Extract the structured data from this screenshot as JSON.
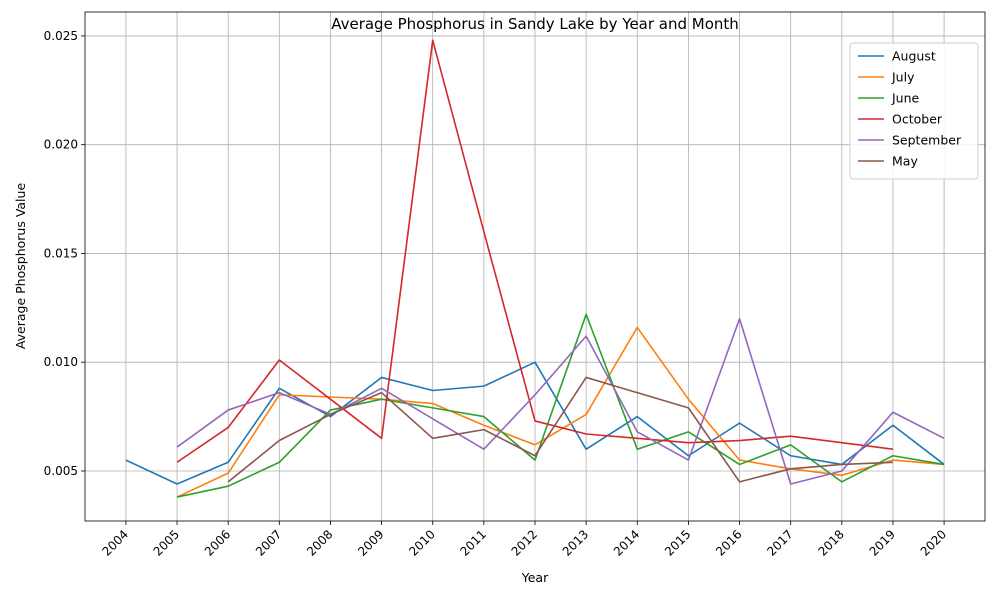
{
  "chart_data": {
    "type": "line",
    "title": "Average Phosphorus in Sandy Lake by Year and Month",
    "xlabel": "Year",
    "ylabel": "Average Phosphorus Value",
    "x": [
      2004,
      2005,
      2006,
      2007,
      2008,
      2009,
      2010,
      2011,
      2012,
      2013,
      2014,
      2015,
      2016,
      2017,
      2018,
      2019,
      2020
    ],
    "x_tick_labels": [
      "2004",
      "2005",
      "2006",
      "2007",
      "2008",
      "2009",
      "2010",
      "2011",
      "2012",
      "2013",
      "2014",
      "2015",
      "2016",
      "2017",
      "2018",
      "2019",
      "2020"
    ],
    "y_ticks": [
      0.005,
      0.01,
      0.015,
      0.02,
      0.025
    ],
    "y_tick_labels": [
      "0.005",
      "0.010",
      "0.015",
      "0.020",
      "0.025"
    ],
    "xlim": [
      2003.2,
      2020.8
    ],
    "ylim": [
      0.0027,
      0.0261
    ],
    "grid": true,
    "legend_position": "top-right",
    "series": [
      {
        "name": "August",
        "color": "#1f77b4",
        "values": [
          0.0055,
          0.0044,
          0.0054,
          0.0088,
          0.0075,
          0.0093,
          0.0087,
          0.0089,
          0.01,
          0.006,
          0.0075,
          0.0057,
          0.0072,
          0.0057,
          0.0053,
          0.0071,
          0.0053
        ]
      },
      {
        "name": "July",
        "color": "#ff7f0e",
        "values": [
          null,
          0.0038,
          0.0049,
          0.0085,
          0.0084,
          0.0083,
          0.0081,
          0.0071,
          0.0062,
          0.0076,
          0.0116,
          0.0083,
          0.0055,
          0.0051,
          0.0048,
          0.0055,
          0.0053
        ]
      },
      {
        "name": "June",
        "color": "#2ca02c",
        "values": [
          null,
          0.0038,
          0.0043,
          0.0054,
          0.0078,
          0.0083,
          0.0079,
          0.0075,
          0.0055,
          0.0122,
          0.006,
          0.0068,
          0.0053,
          0.0062,
          0.0045,
          0.0057,
          0.0053
        ]
      },
      {
        "name": "October",
        "color": "#d62728",
        "values": [
          null,
          0.0054,
          0.007,
          0.0101,
          0.0083,
          0.0065,
          0.0248,
          0.016,
          0.0073,
          0.0067,
          0.0065,
          0.0063,
          0.0064,
          0.0066,
          0.0063,
          0.006,
          null
        ]
      },
      {
        "name": "September",
        "color": "#9467bd",
        "values": [
          null,
          0.0061,
          0.0078,
          0.0086,
          0.0076,
          0.0088,
          0.0074,
          0.006,
          0.0085,
          0.0112,
          0.0068,
          0.0055,
          0.012,
          0.0044,
          0.005,
          0.0077,
          0.0065
        ]
      },
      {
        "name": "May",
        "color": "#8c564b",
        "values": [
          null,
          null,
          0.0045,
          0.0064,
          0.0076,
          0.0086,
          0.0065,
          0.0069,
          0.0057,
          0.0093,
          0.0086,
          0.0079,
          0.0045,
          0.0051,
          0.0053,
          0.0054,
          null
        ]
      }
    ]
  }
}
